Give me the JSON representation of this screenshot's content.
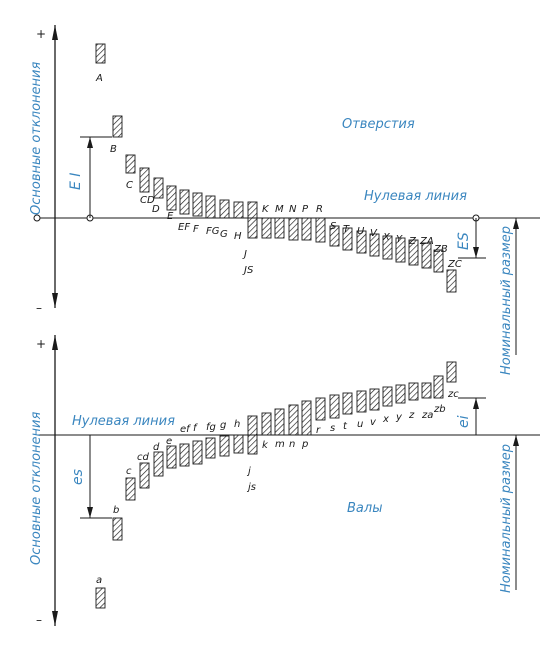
{
  "colors": {
    "ink": "#1a1a1a",
    "accent": "#3a86bf",
    "hatch": "#1a1a1a"
  },
  "axis": {
    "plus_sign": "+",
    "minus_sign": "–",
    "deviation_label": "Основные отклонения",
    "nominal_label": "Номинальный размер",
    "zero_line_label": "Нулевая линия"
  },
  "holes": {
    "title": "Отверстия",
    "EI_label": "E I",
    "ES_label": "ES",
    "letters": [
      "A",
      "B",
      "C",
      "CD",
      "D",
      "E",
      "EF",
      "F",
      "FG",
      "G",
      "H",
      "J",
      "JS",
      "K",
      "M",
      "N",
      "P",
      "R",
      "S",
      "T",
      "U",
      "V",
      "X",
      "Y",
      "Z",
      "ZA",
      "ZB",
      "ZC"
    ]
  },
  "shafts": {
    "title": "Валы",
    "es_label": "es",
    "ei_label": "ei",
    "letters": [
      "a",
      "b",
      "c",
      "cd",
      "d",
      "e",
      "ef",
      "f",
      "fg",
      "g",
      "h",
      "j",
      "js",
      "k",
      "m",
      "n",
      "p",
      "r",
      "s",
      "t",
      "u",
      "v",
      "x",
      "y",
      "z",
      "za",
      "zb",
      "zc"
    ]
  }
}
